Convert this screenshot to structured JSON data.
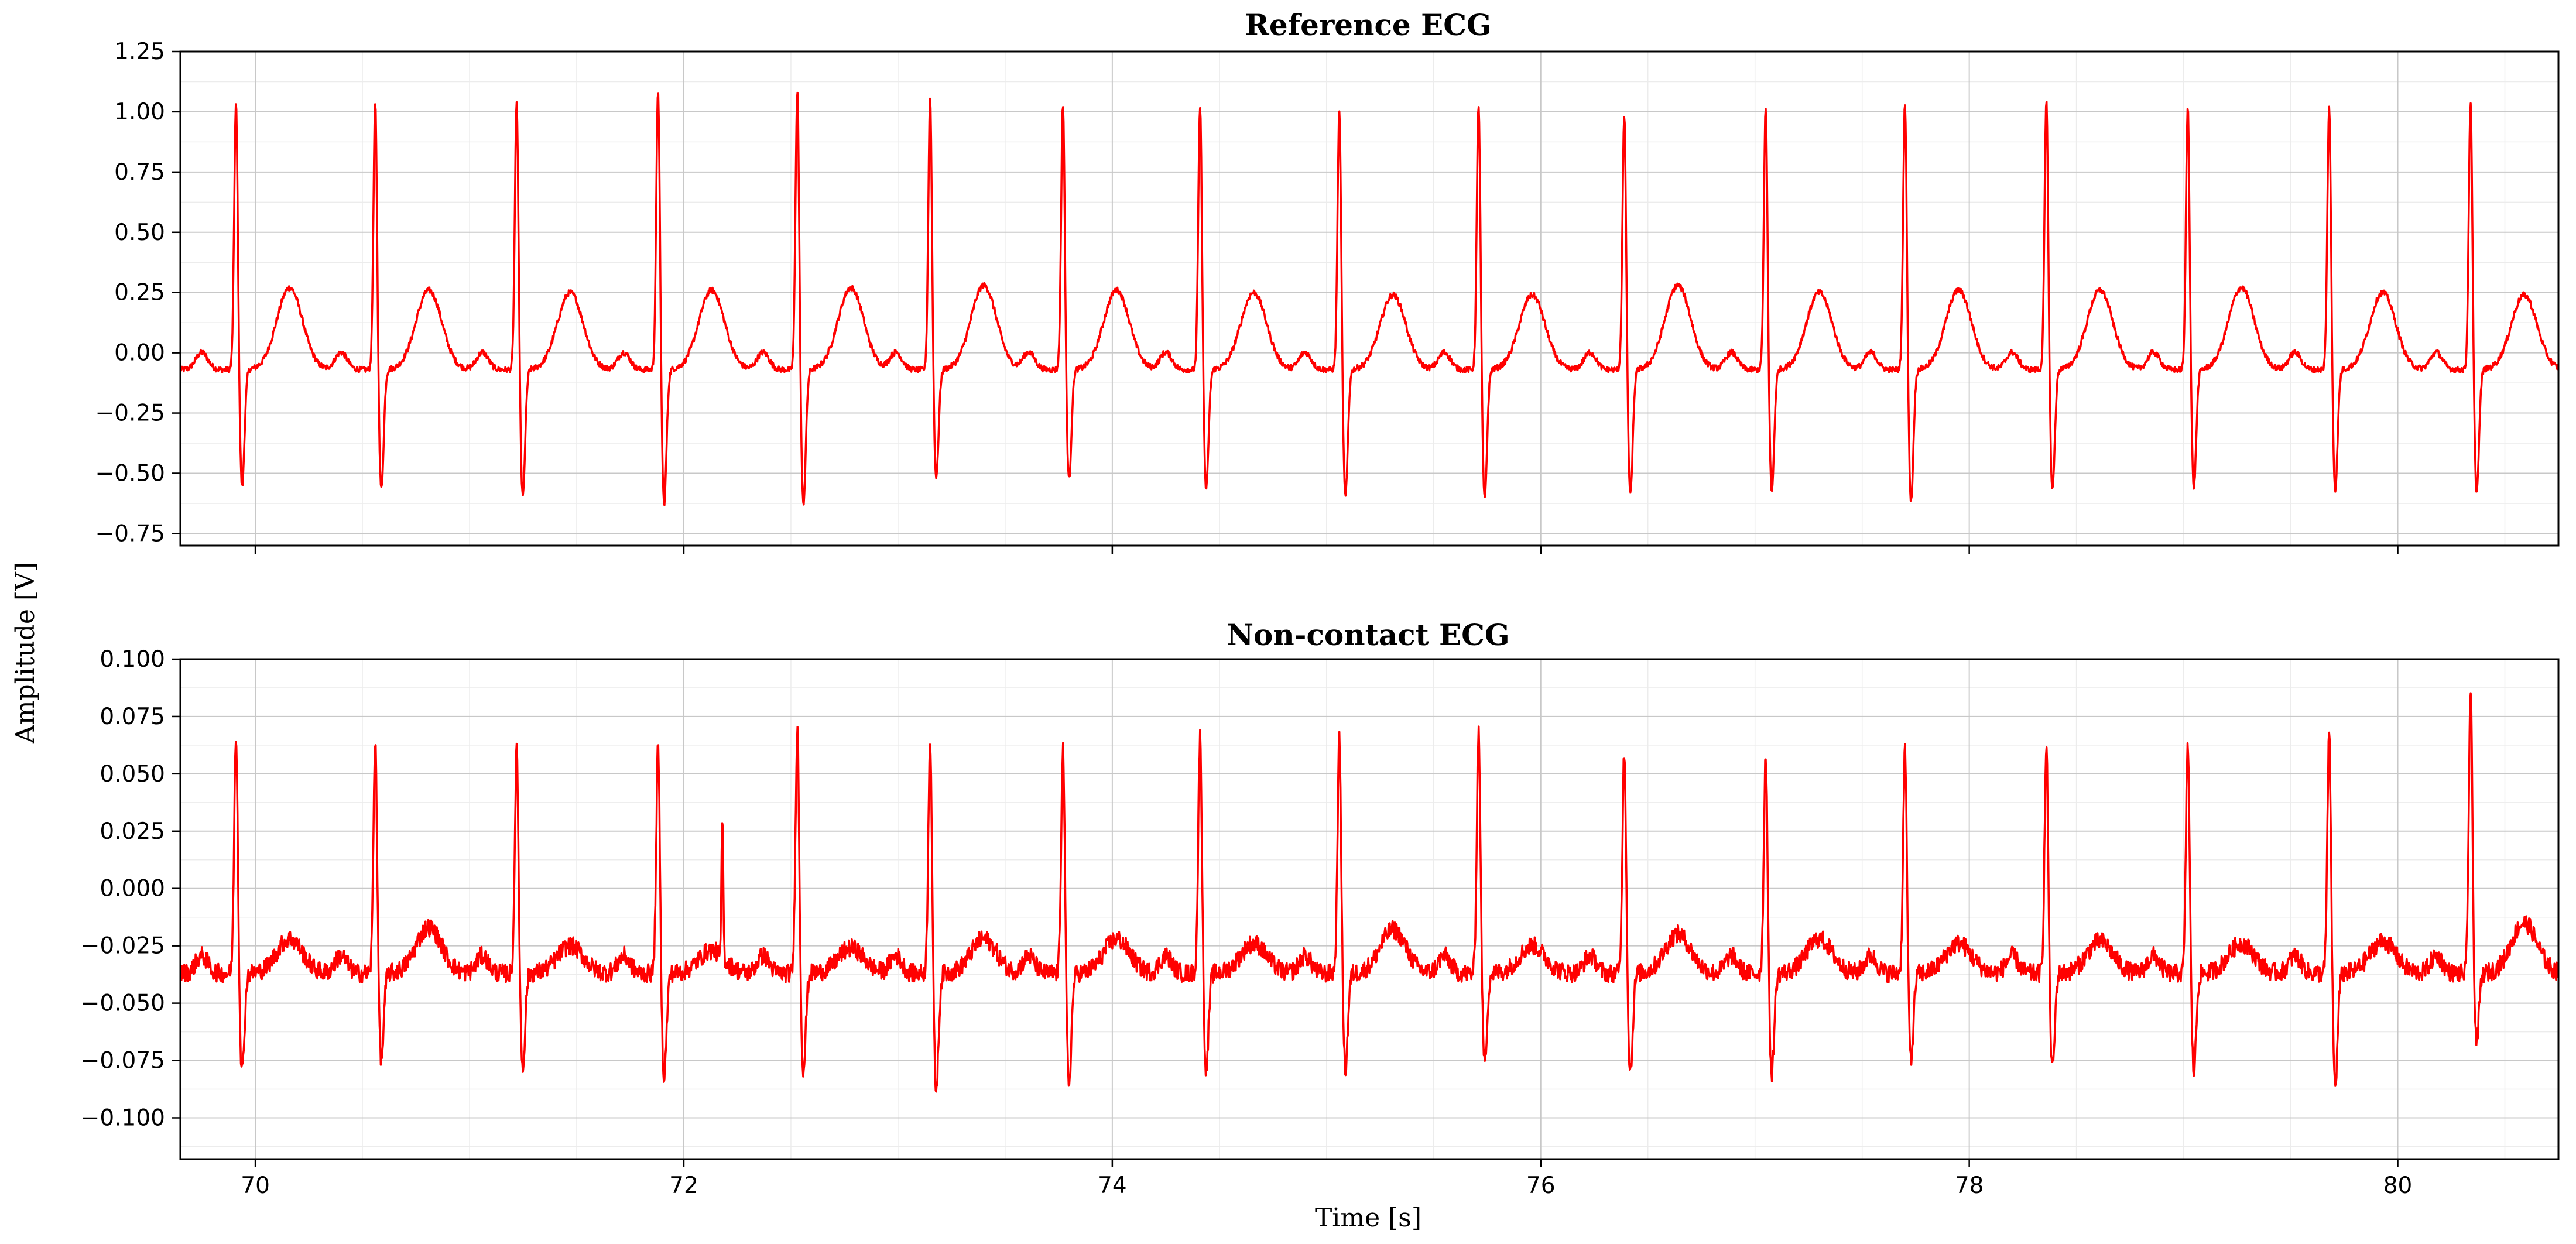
{
  "figure": {
    "ylabel": "Amplitude [V]",
    "xlabel": "Time [s]"
  },
  "chart_data": [
    {
      "type": "line",
      "title": "Reference ECG",
      "xlabel": "Time [s]",
      "ylabel": "Amplitude [V]",
      "xlim": [
        69.65,
        80.75
      ],
      "ylim": [
        -0.8,
        1.25
      ],
      "xticks": [
        70,
        72,
        74,
        76,
        78,
        80
      ],
      "yticks": [
        -0.75,
        -0.5,
        -0.25,
        0.0,
        0.25,
        0.5,
        0.75,
        1.0,
        1.25
      ],
      "ytick_labels": [
        "−0.75",
        "−0.50",
        "−0.25",
        "0.00",
        "0.25",
        "0.50",
        "0.75",
        "1.00",
        "1.25"
      ],
      "grid": true,
      "color": "#ff0000",
      "beats": [
        {
          "t": 69.91,
          "r": 1.05,
          "s": -0.56,
          "tw": 0.27
        },
        {
          "t": 70.56,
          "r": 1.05,
          "s": -0.57,
          "tw": 0.26
        },
        {
          "t": 71.22,
          "r": 1.05,
          "s": -0.6,
          "tw": 0.25
        },
        {
          "t": 71.88,
          "r": 1.11,
          "s": -0.63,
          "tw": 0.26
        },
        {
          "t": 72.53,
          "r": 1.11,
          "s": -0.63,
          "tw": 0.27
        },
        {
          "t": 73.15,
          "r": 1.07,
          "s": -0.52,
          "tw": 0.28
        },
        {
          "t": 73.77,
          "r": 1.05,
          "s": -0.53,
          "tw": 0.26
        },
        {
          "t": 74.41,
          "r": 1.04,
          "s": -0.57,
          "tw": 0.25
        },
        {
          "t": 75.06,
          "r": 1.02,
          "s": -0.6,
          "tw": 0.24
        },
        {
          "t": 75.71,
          "r": 1.05,
          "s": -0.61,
          "tw": 0.24
        },
        {
          "t": 76.39,
          "r": 1.0,
          "s": -0.59,
          "tw": 0.28
        },
        {
          "t": 77.05,
          "r": 1.03,
          "s": -0.58,
          "tw": 0.25
        },
        {
          "t": 77.7,
          "r": 1.06,
          "s": -0.62,
          "tw": 0.26
        },
        {
          "t": 78.36,
          "r": 1.06,
          "s": -0.57,
          "tw": 0.26
        },
        {
          "t": 79.02,
          "r": 1.04,
          "s": -0.56,
          "tw": 0.27
        },
        {
          "t": 79.68,
          "r": 1.04,
          "s": -0.57,
          "tw": 0.25
        },
        {
          "t": 80.34,
          "r": 1.05,
          "s": -0.58,
          "tw": 0.24
        }
      ],
      "baseline": -0.07,
      "noise": 0.012
    },
    {
      "type": "line",
      "title": "Non-contact ECG",
      "xlabel": "Time [s]",
      "ylabel": "Amplitude [V]",
      "xlim": [
        69.65,
        80.75
      ],
      "ylim": [
        -0.118,
        0.1
      ],
      "xticks": [
        70,
        72,
        74,
        76,
        78,
        80
      ],
      "yticks": [
        -0.1,
        -0.075,
        -0.05,
        -0.025,
        0.0,
        0.025,
        0.05,
        0.075,
        0.1
      ],
      "ytick_labels": [
        "−0.100",
        "−0.075",
        "−0.050",
        "−0.025",
        "0.000",
        "0.025",
        "0.050",
        "0.075",
        "0.100"
      ],
      "grid": true,
      "color": "#ff0000",
      "beats": [
        {
          "t": 69.91,
          "r": 0.069,
          "s": -0.08,
          "tw": -0.022
        },
        {
          "t": 70.56,
          "r": 0.066,
          "s": -0.075,
          "tw": -0.017
        },
        {
          "t": 71.22,
          "r": 0.061,
          "s": -0.078,
          "tw": -0.025
        },
        {
          "t": 71.88,
          "r": 0.063,
          "s": -0.082,
          "tw": -0.027
        },
        {
          "t": 72.53,
          "r": 0.071,
          "s": -0.079,
          "tw": -0.026
        },
        {
          "t": 73.15,
          "r": 0.067,
          "s": -0.088,
          "tw": -0.022
        },
        {
          "t": 73.77,
          "r": 0.063,
          "s": -0.085,
          "tw": -0.022
        },
        {
          "t": 74.41,
          "r": 0.068,
          "s": -0.079,
          "tw": -0.024
        },
        {
          "t": 75.06,
          "r": 0.066,
          "s": -0.079,
          "tw": -0.018
        },
        {
          "t": 75.71,
          "r": 0.07,
          "s": -0.076,
          "tw": -0.025
        },
        {
          "t": 76.39,
          "r": 0.062,
          "s": -0.08,
          "tw": -0.02
        },
        {
          "t": 77.05,
          "r": 0.06,
          "s": -0.081,
          "tw": -0.022
        },
        {
          "t": 77.7,
          "r": 0.062,
          "s": -0.075,
          "tw": -0.024
        },
        {
          "t": 78.36,
          "r": 0.062,
          "s": -0.079,
          "tw": -0.023
        },
        {
          "t": 79.02,
          "r": 0.065,
          "s": -0.08,
          "tw": -0.024
        },
        {
          "t": 79.68,
          "r": 0.068,
          "s": -0.086,
          "tw": -0.023
        },
        {
          "t": 80.34,
          "r": 0.087,
          "s": -0.067,
          "tw": -0.015
        }
      ],
      "artifacts": [
        {
          "t": 72.18,
          "v": 0.024
        }
      ],
      "baseline": -0.037,
      "noise": 0.004
    }
  ]
}
